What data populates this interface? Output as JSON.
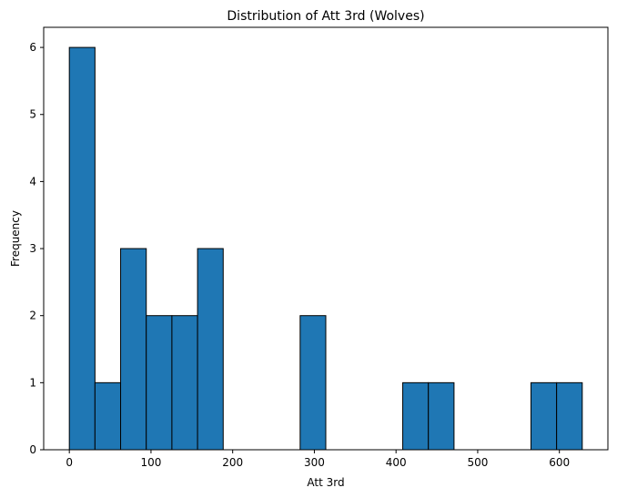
{
  "chart_data": {
    "type": "bar",
    "title": "Distribution of Att 3rd (Wolves)",
    "xlabel": "Att 3rd",
    "ylabel": "Frequency",
    "xlim": [
      -31.4,
      659.4
    ],
    "ylim": [
      0,
      6.3
    ],
    "bin_start": 0,
    "bin_width": 31.4,
    "values": [
      6,
      1,
      3,
      2,
      2,
      3,
      0,
      0,
      0,
      2,
      0,
      0,
      0,
      1,
      1,
      0,
      0,
      0,
      1,
      1
    ],
    "x_ticks": [
      0,
      100,
      200,
      300,
      400,
      500,
      600
    ],
    "y_ticks": [
      0,
      1,
      2,
      3,
      4,
      5,
      6
    ],
    "bar_color": "#1f77b4",
    "edge_color": "#000000",
    "grid": false
  }
}
